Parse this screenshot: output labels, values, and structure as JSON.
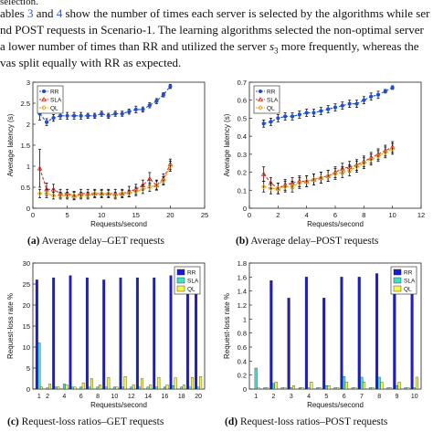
{
  "body_text": {
    "line0": "selection.",
    "line1_a": "ables ",
    "line1_ref1": "3",
    "line1_b": " and ",
    "line1_ref2": "4",
    "line1_c": " show the number of times each server is selected by the algorithms while ser",
    "line2": "nd POST requests in Scenario-1. The learning algorithms selected the non-optimal server",
    "line3_a": " a lower number of times than RR and utilized the server ",
    "line3_var": "s",
    "line3_sub": "3",
    "line3_b": " more frequently, whereas the",
    "line4": "vas split equally with RR as expected."
  },
  "captions": {
    "a_label": "(a)",
    "a_text": "Average delay–GET requests",
    "b_label": "(b)",
    "b_text": "Average delay–POST requests",
    "c_label": "(c)",
    "c_text": "Request-loss ratios–GET requests",
    "d_label": "(d)",
    "d_text": "Request-loss ratios–POST requests"
  },
  "colors": {
    "rr": "#1f4fd1",
    "sla": "#d62a1e",
    "ql": "#e8a317",
    "bar_rr": "#1a1adb",
    "bar_sla": "#3fe0c8",
    "bar_ql": "#f5f542"
  },
  "chart_data": [
    {
      "id": "a",
      "type": "line",
      "xlabel": "Requests/second",
      "ylabel": "Average latency (s)",
      "xlim": [
        0,
        25
      ],
      "ylim": [
        0,
        3
      ],
      "xticks": [
        0,
        5,
        10,
        15,
        20,
        25
      ],
      "yticks": [
        0,
        0.5,
        1,
        1.5,
        2,
        2.5,
        3
      ],
      "legend": [
        "RR",
        "SLA",
        "QL"
      ],
      "legend_position": "top-left",
      "x": [
        1,
        2,
        3,
        4,
        5,
        6,
        7,
        8,
        9,
        10,
        11,
        12,
        13,
        14,
        15,
        16,
        17,
        18,
        19,
        20
      ],
      "series": [
        {
          "name": "RR",
          "values": [
            2.25,
            2.05,
            2.15,
            2.2,
            2.2,
            2.2,
            2.2,
            2.2,
            2.2,
            2.25,
            2.2,
            2.25,
            2.25,
            2.3,
            2.35,
            2.35,
            2.45,
            2.55,
            2.7,
            2.9
          ],
          "err": [
            0.15,
            0.08,
            0.08,
            0.08,
            0.08,
            0.08,
            0.08,
            0.06,
            0.06,
            0.06,
            0.06,
            0.06,
            0.06,
            0.06,
            0.08,
            0.06,
            0.06,
            0.06,
            0.05,
            0.05
          ]
        },
        {
          "name": "SLA",
          "values": [
            0.95,
            0.45,
            0.45,
            0.35,
            0.35,
            0.3,
            0.35,
            0.35,
            0.35,
            0.35,
            0.35,
            0.35,
            0.35,
            0.4,
            0.45,
            0.55,
            0.7,
            0.55,
            0.7,
            1.05
          ],
          "err": [
            0.45,
            0.15,
            0.12,
            0.1,
            0.1,
            0.1,
            0.1,
            0.1,
            0.1,
            0.1,
            0.1,
            0.1,
            0.1,
            0.12,
            0.12,
            0.12,
            0.15,
            0.12,
            0.12,
            0.12
          ]
        },
        {
          "name": "QL",
          "values": [
            0.35,
            0.35,
            0.3,
            0.3,
            0.3,
            0.3,
            0.3,
            0.3,
            0.35,
            0.35,
            0.35,
            0.3,
            0.35,
            0.35,
            0.4,
            0.45,
            0.5,
            0.55,
            0.65,
            1.0
          ],
          "err": [
            0.1,
            0.1,
            0.08,
            0.08,
            0.08,
            0.08,
            0.08,
            0.08,
            0.08,
            0.08,
            0.08,
            0.08,
            0.08,
            0.08,
            0.1,
            0.1,
            0.1,
            0.1,
            0.1,
            0.12
          ]
        }
      ]
    },
    {
      "id": "b",
      "type": "line",
      "xlabel": "Requests/second",
      "ylabel": "Average latency (s)",
      "xlim": [
        0,
        12
      ],
      "ylim": [
        0,
        0.7
      ],
      "xticks": [
        0,
        2,
        4,
        6,
        8,
        10,
        12
      ],
      "yticks": [
        0,
        0.1,
        0.2,
        0.3,
        0.4,
        0.5,
        0.6,
        0.7
      ],
      "legend": [
        "RR",
        "SLA",
        "QL"
      ],
      "legend_position": "top-left",
      "x": [
        1,
        1.5,
        2,
        2.5,
        3,
        3.5,
        4,
        4.5,
        5,
        5.5,
        6,
        6.5,
        7,
        7.5,
        8,
        8.5,
        9,
        9.5,
        10
      ],
      "series": [
        {
          "name": "RR",
          "values": [
            0.47,
            0.48,
            0.5,
            0.51,
            0.51,
            0.52,
            0.53,
            0.53,
            0.54,
            0.55,
            0.56,
            0.57,
            0.58,
            0.58,
            0.6,
            0.62,
            0.63,
            0.65,
            0.67
          ],
          "err": [
            0.02,
            0.02,
            0.02,
            0.02,
            0.02,
            0.02,
            0.02,
            0.02,
            0.02,
            0.02,
            0.02,
            0.02,
            0.02,
            0.02,
            0.02,
            0.02,
            0.02,
            0.01,
            0.01
          ]
        },
        {
          "name": "SLA",
          "values": [
            0.19,
            0.14,
            0.11,
            0.13,
            0.14,
            0.15,
            0.15,
            0.16,
            0.17,
            0.18,
            0.2,
            0.22,
            0.23,
            0.24,
            0.26,
            0.28,
            0.3,
            0.32,
            0.34
          ],
          "err": [
            0.04,
            0.03,
            0.03,
            0.03,
            0.03,
            0.03,
            0.03,
            0.03,
            0.03,
            0.03,
            0.03,
            0.03,
            0.03,
            0.03,
            0.03,
            0.03,
            0.03,
            0.03,
            0.03
          ]
        },
        {
          "name": "QL",
          "values": [
            0.12,
            0.11,
            0.11,
            0.12,
            0.12,
            0.14,
            0.15,
            0.16,
            0.17,
            0.18,
            0.19,
            0.2,
            0.21,
            0.23,
            0.25,
            0.27,
            0.29,
            0.31,
            0.33
          ],
          "err": [
            0.03,
            0.03,
            0.03,
            0.03,
            0.03,
            0.03,
            0.03,
            0.03,
            0.03,
            0.03,
            0.03,
            0.03,
            0.03,
            0.03,
            0.03,
            0.03,
            0.03,
            0.03,
            0.03
          ]
        }
      ]
    },
    {
      "id": "c",
      "type": "bar",
      "xlabel": "Requests/second",
      "ylabel": "Request-loss rate %",
      "ylim": [
        0,
        30
      ],
      "yticks": [
        0,
        5,
        10,
        15,
        20,
        25,
        30
      ],
      "legend": [
        "RR",
        "SLA",
        "QL"
      ],
      "legend_position": "top-right",
      "categories": [
        "1",
        "2",
        "3",
        "4",
        "5",
        "6",
        "7",
        "8",
        "9",
        "10",
        "11",
        "12",
        "13",
        "14",
        "15",
        "16",
        "17",
        "18",
        "19",
        "20"
      ],
      "xtick_labels": [
        "1",
        "2",
        "4",
        "6",
        "8",
        "10",
        "12",
        "14",
        "16",
        "18",
        "20"
      ],
      "series": [
        {
          "name": "RR",
          "values": [
            26,
            0,
            26.5,
            0,
            27,
            0,
            26.5,
            0,
            26,
            0,
            26.5,
            0,
            26.5,
            0,
            26.5,
            0,
            27,
            0,
            26.5,
            28
          ]
        },
        {
          "name": "SLA",
          "values": [
            11,
            0.3,
            0.5,
            1.2,
            0.5,
            0.5,
            0.5,
            0.5,
            0.5,
            0.5,
            0.5,
            0.5,
            0.5,
            0.5,
            0.5,
            0.5,
            0.8,
            0.5,
            0.5,
            0.5
          ]
        },
        {
          "name": "QL",
          "values": [
            0.5,
            1.2,
            0.5,
            1.0,
            0.5,
            1.5,
            2.5,
            1.0,
            2.8,
            0.5,
            3.0,
            1.0,
            2.5,
            1.0,
            2.8,
            1.0,
            2.7,
            1.0,
            2.8,
            3.0
          ]
        }
      ]
    },
    {
      "id": "d",
      "type": "bar",
      "xlabel": "Requests/second",
      "ylabel": "Request-loss rate %",
      "ylim": [
        0,
        1.8
      ],
      "yticks": [
        0,
        0.2,
        0.4,
        0.6,
        0.8,
        1,
        1.2,
        1.4,
        1.6,
        1.8
      ],
      "legend": [
        "RR",
        "SLA",
        "QL"
      ],
      "legend_position": "top-right",
      "categories": [
        "1",
        "1.5",
        "2",
        "2.5",
        "3",
        "3.5",
        "4",
        "4.5",
        "5",
        "5.5",
        "6",
        "6.5",
        "7",
        "7.5",
        "8",
        "8.5",
        "9",
        "9.5",
        "10"
      ],
      "xtick_labels": [
        "1",
        "2",
        "3",
        "4",
        "5",
        "6",
        "7",
        "8",
        "9",
        "10"
      ],
      "series": [
        {
          "name": "RR",
          "values": [
            0,
            0,
            1.55,
            0,
            1.3,
            0,
            1.6,
            0,
            1.3,
            0,
            1.6,
            0,
            1.6,
            0,
            1.65,
            0,
            1.55,
            0,
            1.52
          ]
        },
        {
          "name": "SLA",
          "values": [
            0.3,
            0.02,
            0.08,
            0.02,
            0.02,
            0.02,
            0.02,
            0.02,
            0.05,
            0.02,
            0.18,
            0.02,
            0.17,
            0.02,
            0.17,
            0.02,
            0.05,
            0.02,
            0.02
          ]
        },
        {
          "name": "QL",
          "values": [
            0.02,
            0.02,
            0.1,
            0.02,
            0.05,
            0.02,
            0.1,
            0.02,
            0.05,
            0.02,
            0.1,
            0.02,
            0.1,
            0.02,
            0.1,
            0.02,
            0.1,
            0.02,
            0.17
          ]
        }
      ]
    }
  ]
}
